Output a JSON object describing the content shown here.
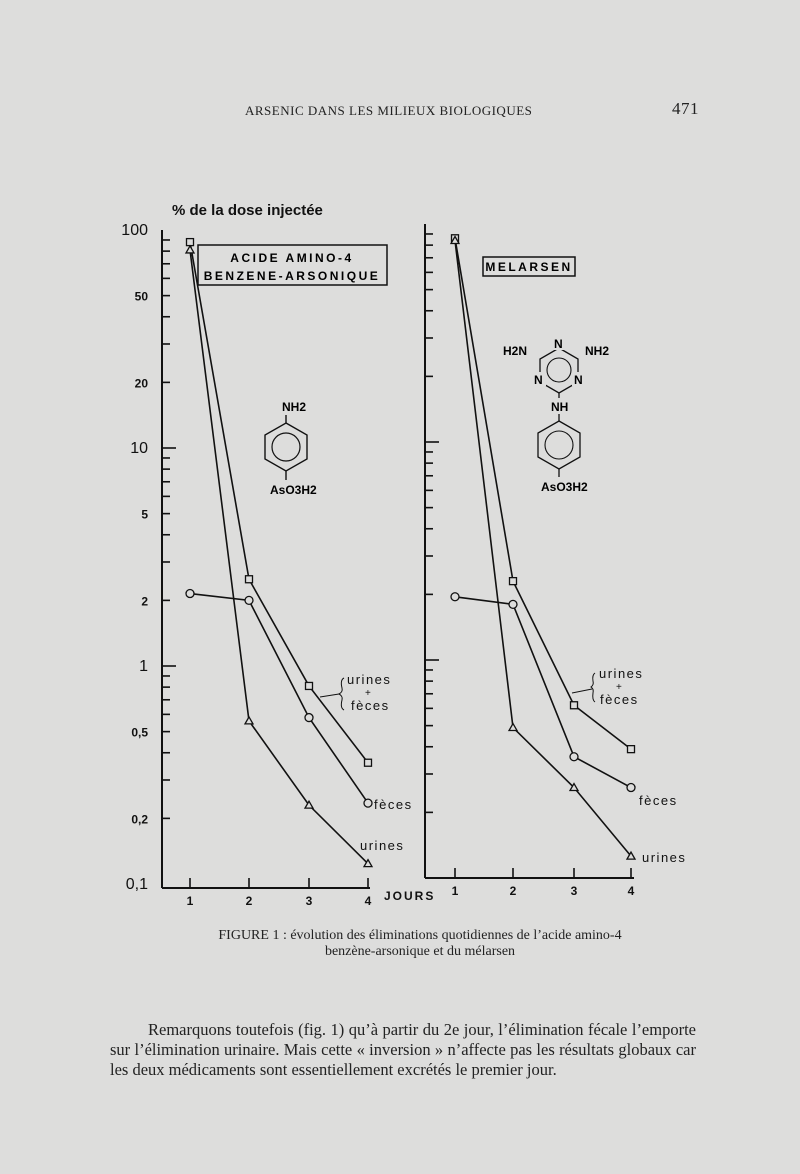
{
  "header": {
    "running_head": "ARSENIC DANS LES MILIEUX BIOLOGIQUES",
    "page_number": "471"
  },
  "figure": {
    "y_axis_title": "% de la dose injectée",
    "x_axis_title": "JOURS",
    "panel_left": {
      "title_line1": "ACIDE AMINO-4",
      "title_line2": "BENZENE-ARSONIQUE",
      "structure": {
        "top": "NH2",
        "bottom": "AsO3H2"
      },
      "labels": {
        "total_a": "urines",
        "total_plus": "+",
        "total_b": "fèces",
        "feces": "fèces",
        "urine": "urines"
      }
    },
    "panel_right": {
      "title": "MELARSEN",
      "structure": {
        "left_amine": "H2N",
        "right_amine": "NH2",
        "n_top": "N",
        "n_left": "N",
        "n_right": "N",
        "linker": "NH",
        "bottom": "AsO3H2"
      },
      "labels": {
        "total_a": "urines",
        "total_plus": "+",
        "total_b": "fèces",
        "feces": "fèces",
        "urine": "urines"
      }
    }
  },
  "chart_data": [
    {
      "type": "line",
      "title": "ACIDE AMINO-4 BENZENE-ARSONIQUE",
      "xlabel": "JOURS",
      "ylabel": "% de la dose injectée",
      "yscale": "log",
      "ylim": [
        0.1,
        100
      ],
      "x": [
        1,
        2,
        3,
        4
      ],
      "x_tick_labels": [
        "1",
        "2",
        "3",
        "4"
      ],
      "y_ticks": [
        100,
        50,
        20,
        10,
        5,
        2,
        1,
        0.5,
        0.2,
        0.1
      ],
      "y_tick_labels": [
        "100",
        "50",
        "20",
        "10",
        "5",
        "2",
        "1",
        "0,5",
        "0,2",
        "0,1"
      ],
      "series": [
        {
          "name": "urines + fèces",
          "marker": "square",
          "values": [
            88,
            2.5,
            0.81,
            0.36
          ]
        },
        {
          "name": "fèces",
          "marker": "circle",
          "values": [
            2.15,
            2.0,
            0.58,
            0.235
          ]
        },
        {
          "name": "urines",
          "marker": "triangle",
          "values": [
            81,
            0.56,
            0.23,
            0.124
          ]
        }
      ]
    },
    {
      "type": "line",
      "title": "MELARSEN",
      "xlabel": "JOURS",
      "ylabel": "% de la dose injectée",
      "yscale": "log",
      "ylim": [
        0.1,
        100
      ],
      "x": [
        1,
        2,
        3,
        4
      ],
      "x_tick_labels": [
        "1",
        "2",
        "3",
        "4"
      ],
      "series": [
        {
          "name": "urines + fèces",
          "marker": "square",
          "values": [
            86,
            2.3,
            0.62,
            0.39
          ]
        },
        {
          "name": "fèces",
          "marker": "circle",
          "values": [
            1.95,
            1.8,
            0.36,
            0.26
          ]
        },
        {
          "name": "urines",
          "marker": "triangle",
          "values": [
            84,
            0.49,
            0.26,
            0.126
          ]
        }
      ]
    }
  ],
  "caption": {
    "line1": "FIGURE 1 : évolution des éliminations quotidiennes de l’acide amino-4",
    "line2": "benzène-arsonique et du mélarsen"
  },
  "body_text": "Remarquons toutefois (fig. 1) qu’à partir du 2e jour, l’élimination fécale l’emporte sur l’élimination urinaire. Mais cette « inversion » n’affecte pas les résultats globaux car les deux médicaments sont essentiellement excrétés le premier jour."
}
